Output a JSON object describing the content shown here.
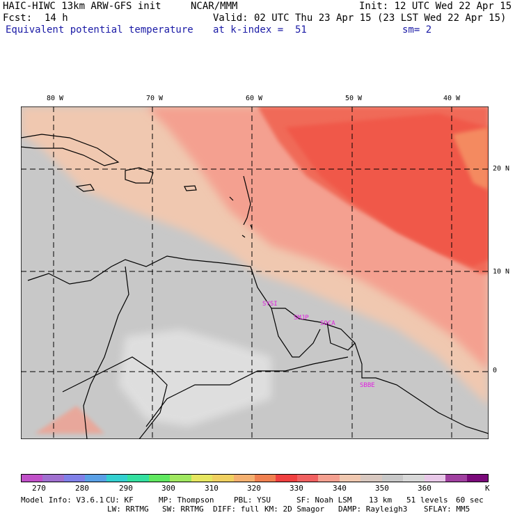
{
  "header": {
    "model": "HAIC-HIWC 13km ARW-GFS init",
    "org": "NCAR/MMM",
    "init": "Init: 12 UTC Wed 22 Apr 15",
    "fcst_label": "Fcst:",
    "fcst_value": "14 h",
    "valid": "Valid: 02 UTC Thu 23 Apr 15 (23 LST Wed 22 Apr 15)",
    "field": "Equivalent potential temperature",
    "level": "at k-index =  51",
    "sm": "sm= 2"
  },
  "axes": {
    "lon_labels": [
      "80 W",
      "70 W",
      "60 W",
      "50 W",
      "40 W"
    ],
    "lat_labels": [
      "20 N",
      "10 N",
      "0"
    ]
  },
  "stations": [
    "SYSI",
    "SMJP",
    "SOCA",
    "SBBE"
  ],
  "colorbar": {
    "colors": [
      "#c050c8",
      "#a070d0",
      "#8080e8",
      "#5aa0e6",
      "#34d0d0",
      "#34e0a0",
      "#60e860",
      "#a0e860",
      "#e6e660",
      "#f0d060",
      "#f4b070",
      "#f08050",
      "#f04040",
      "#f06060",
      "#f4a090",
      "#f0c8b0",
      "#d8c8c0",
      "#c8c8c8",
      "#d8d8d8",
      "#e8c8e8",
      "#a040a0",
      "#7a0a7a"
    ],
    "labels": [
      "270",
      "280",
      "290",
      "300",
      "310",
      "320",
      "330",
      "340",
      "350",
      "360",
      "K"
    ]
  },
  "footer": {
    "line1": [
      "Model Info: V3.6.1",
      "CU: KF",
      "MP: Thompson",
      "PBL: YSU",
      "SF: Noah LSM",
      "13 km",
      "51 levels",
      "60 sec"
    ],
    "line2": [
      "LW: RRTMG",
      "SW: RRTMG",
      "DIFF: full",
      "KM: 2D Smagor",
      "DAMP: Rayleigh3",
      "SFLAY: MM5"
    ]
  }
}
